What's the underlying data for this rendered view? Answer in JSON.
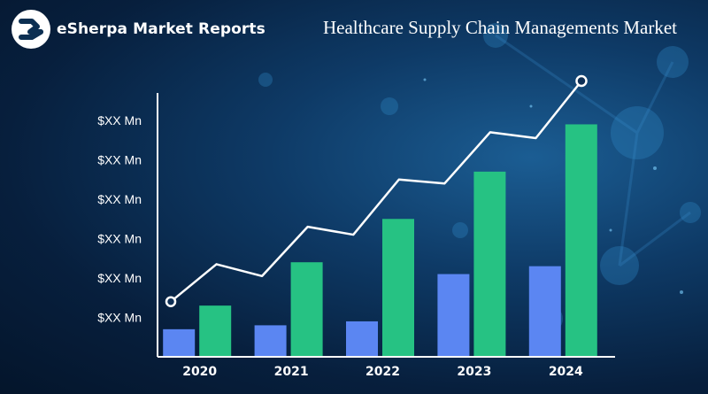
{
  "brand": {
    "name": "eSherpa Market Reports",
    "logo_icon": "esherpa-logo-icon"
  },
  "colors": {
    "bar_primary": "#5b86f2",
    "bar_secondary": "#26c283",
    "trend_line": "#ffffff"
  },
  "chart_data": {
    "type": "bar",
    "title": "Healthcare Supply Chain Managements Market",
    "xlabel": "",
    "ylabel": "",
    "categories": [
      "2020",
      "2021",
      "2022",
      "2023",
      "2024"
    ],
    "yticks": [
      "$XX Mn",
      "$XX Mn",
      "$XX Mn",
      "$XX Mn",
      "$XX Mn",
      "$XX Mn"
    ],
    "ylim": [
      0,
      6
    ],
    "series": [
      {
        "values": [
          0.7,
          0.8,
          0.9,
          2.1,
          2.3
        ]
      },
      {
        "values": [
          1.3,
          2.4,
          3.5,
          4.7,
          5.9
        ]
      }
    ],
    "trend": [
      1.4,
      2.35,
      2.05,
      3.3,
      3.1,
      4.5,
      4.4,
      5.7,
      5.55,
      7.0
    ],
    "grid": false,
    "legend": "none"
  }
}
